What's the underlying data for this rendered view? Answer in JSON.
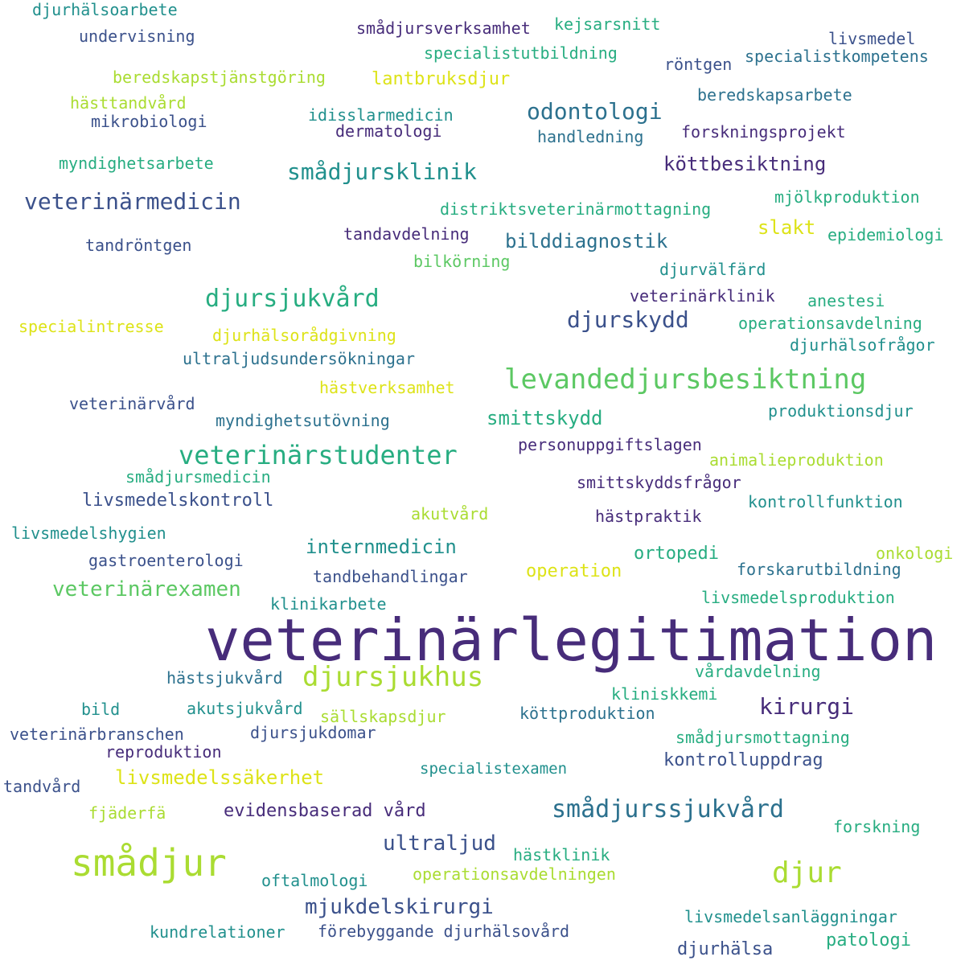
{
  "palette": {
    "v1": "#472c7a",
    "v2": "#3b518b",
    "v3": "#2c718e",
    "v4": "#21908d",
    "v5": "#27ad81",
    "v6": "#5cc863",
    "v7": "#aadc32",
    "v8": "#dde318"
  },
  "words": [
    {
      "text": "veterinärlegitimation",
      "weight": 72,
      "color": "v1"
    },
    {
      "text": "levandedjursbesiktning",
      "weight": 34,
      "color": "v6"
    },
    {
      "text": "smådjur",
      "weight": 46,
      "color": "v7"
    },
    {
      "text": "djursjukhus",
      "weight": 34,
      "color": "v7"
    },
    {
      "text": "veterinärstudenter",
      "weight": 32,
      "color": "v5"
    },
    {
      "text": "djur",
      "weight": 36,
      "color": "v7"
    },
    {
      "text": "djursjukvård",
      "weight": 30,
      "color": "v5"
    },
    {
      "text": "smådjurssjukvård",
      "weight": 30,
      "color": "v3"
    },
    {
      "text": "veterinärmedicin",
      "weight": 28,
      "color": "v2"
    },
    {
      "text": "smådjursklinik",
      "weight": 28,
      "color": "v4"
    },
    {
      "text": "odontologi",
      "weight": 28,
      "color": "v3"
    },
    {
      "text": "djurskydd",
      "weight": 28,
      "color": "v2"
    },
    {
      "text": "veterinärexamen",
      "weight": 26,
      "color": "v6"
    },
    {
      "text": "kirurgi",
      "weight": 28,
      "color": "v1"
    },
    {
      "text": "ultraljud",
      "weight": 26,
      "color": "v2"
    },
    {
      "text": "mjukdelskirurgi",
      "weight": 26,
      "color": "v2"
    },
    {
      "text": "livsmedelssäkerhet",
      "weight": 24,
      "color": "v8"
    },
    {
      "text": "smittskydd",
      "weight": 24,
      "color": "v5"
    },
    {
      "text": "bilddiagnostik",
      "weight": 24,
      "color": "v3"
    },
    {
      "text": "köttbesiktning",
      "weight": 24,
      "color": "v1"
    },
    {
      "text": "internmedicin",
      "weight": 24,
      "color": "v4"
    },
    {
      "text": "livsmedelskontroll",
      "weight": 22,
      "color": "v2"
    },
    {
      "text": "slakt",
      "weight": 24,
      "color": "v8"
    },
    {
      "text": "kontrolluppdrag",
      "weight": 22,
      "color": "v2"
    },
    {
      "text": "evidensbaserad vård",
      "weight": 22,
      "color": "v1"
    },
    {
      "text": "djurhälsa",
      "weight": 22,
      "color": "v2"
    },
    {
      "text": "patologi",
      "weight": 22,
      "color": "v5"
    },
    {
      "text": "operation",
      "weight": 22,
      "color": "v8"
    },
    {
      "text": "ortopedi",
      "weight": 22,
      "color": "v5"
    },
    {
      "text": "lantbruksdjur",
      "weight": 22,
      "color": "v8"
    },
    {
      "text": "djurhälsoarbete",
      "weight": 20,
      "color": "v4"
    },
    {
      "text": "förebyggande djurhälsovård",
      "weight": 20,
      "color": "v2"
    },
    {
      "text": "forskning",
      "weight": 20,
      "color": "v5"
    },
    {
      "text": "tandvård",
      "weight": 20,
      "color": "v2"
    },
    {
      "text": "specialistexamen",
      "weight": 19,
      "color": "v4"
    },
    {
      "text": "undervisning",
      "weight": 20,
      "color": "v2"
    },
    {
      "text": "smådjursverksamhet",
      "weight": 20,
      "color": "v1"
    },
    {
      "text": "kejsarsnitt",
      "weight": 20,
      "color": "v5"
    },
    {
      "text": "livsmedel",
      "weight": 20,
      "color": "v2"
    },
    {
      "text": "specialistutbildning",
      "weight": 20,
      "color": "v5"
    },
    {
      "text": "röntgen",
      "weight": 20,
      "color": "v2"
    },
    {
      "text": "specialistkompetens",
      "weight": 20,
      "color": "v3"
    },
    {
      "text": "beredskapstjänstgöring",
      "weight": 20,
      "color": "v7"
    },
    {
      "text": "beredskapsarbete",
      "weight": 20,
      "color": "v3"
    },
    {
      "text": "hästtandvård",
      "weight": 20,
      "color": "v7"
    },
    {
      "text": "idisslarmedicin",
      "weight": 20,
      "color": "v4"
    },
    {
      "text": "mikrobiologi",
      "weight": 20,
      "color": "v2"
    },
    {
      "text": "dermatologi",
      "weight": 20,
      "color": "v1"
    },
    {
      "text": "handledning",
      "weight": 20,
      "color": "v3"
    },
    {
      "text": "forskningsprojekt",
      "weight": 20,
      "color": "v1"
    },
    {
      "text": "myndighetsarbete",
      "weight": 20,
      "color": "v5"
    },
    {
      "text": "mjölkproduktion",
      "weight": 20,
      "color": "v5"
    },
    {
      "text": "distriktsveterinärmottagning",
      "weight": 20,
      "color": "v5"
    },
    {
      "text": "tandröntgen",
      "weight": 20,
      "color": "v2"
    },
    {
      "text": "tandavdelning",
      "weight": 20,
      "color": "v1"
    },
    {
      "text": "epidemiologi",
      "weight": 20,
      "color": "v5"
    },
    {
      "text": "bilkörning",
      "weight": 20,
      "color": "v6"
    },
    {
      "text": "djurvälfärd",
      "weight": 20,
      "color": "v4"
    },
    {
      "text": "veterinärklinik",
      "weight": 20,
      "color": "v1"
    },
    {
      "text": "anestesi",
      "weight": 20,
      "color": "v5"
    },
    {
      "text": "specialintresse",
      "weight": 20,
      "color": "v8"
    },
    {
      "text": "djurhälsorådgivning",
      "weight": 20,
      "color": "v8"
    },
    {
      "text": "operationsavdelning",
      "weight": 20,
      "color": "v5"
    },
    {
      "text": "ultraljudsundersökningar",
      "weight": 20,
      "color": "v3"
    },
    {
      "text": "djurhälsofrågor",
      "weight": 20,
      "color": "v4"
    },
    {
      "text": "hästverksamhet",
      "weight": 20,
      "color": "v8"
    },
    {
      "text": "veterinärvård",
      "weight": 20,
      "color": "v2"
    },
    {
      "text": "myndighetsutövning",
      "weight": 20,
      "color": "v3"
    },
    {
      "text": "produktionsdjur",
      "weight": 20,
      "color": "v4"
    },
    {
      "text": "personuppgiftslagen",
      "weight": 20,
      "color": "v1"
    },
    {
      "text": "animalieproduktion",
      "weight": 20,
      "color": "v7"
    },
    {
      "text": "smådjursmedicin",
      "weight": 20,
      "color": "v5"
    },
    {
      "text": "smittskyddsfrågor",
      "weight": 20,
      "color": "v1"
    },
    {
      "text": "akutvård",
      "weight": 20,
      "color": "v7"
    },
    {
      "text": "hästpraktik",
      "weight": 20,
      "color": "v1"
    },
    {
      "text": "kontrollfunktion",
      "weight": 20,
      "color": "v4"
    },
    {
      "text": "livsmedelshygien",
      "weight": 20,
      "color": "v4"
    },
    {
      "text": "gastroenterologi",
      "weight": 20,
      "color": "v2"
    },
    {
      "text": "onkologi",
      "weight": 20,
      "color": "v7"
    },
    {
      "text": "tandbehandlingar",
      "weight": 20,
      "color": "v2"
    },
    {
      "text": "forskarutbildning",
      "weight": 20,
      "color": "v3"
    },
    {
      "text": "klinikarbete",
      "weight": 20,
      "color": "v4"
    },
    {
      "text": "livsmedelsproduktion",
      "weight": 20,
      "color": "v5"
    },
    {
      "text": "vårdavdelning",
      "weight": 20,
      "color": "v5"
    },
    {
      "text": "hästsjukvård",
      "weight": 20,
      "color": "v3"
    },
    {
      "text": "kliniskkemi",
      "weight": 20,
      "color": "v5"
    },
    {
      "text": "bild",
      "weight": 20,
      "color": "v4"
    },
    {
      "text": "akutsjukvård",
      "weight": 20,
      "color": "v4"
    },
    {
      "text": "sällskapsdjur",
      "weight": 20,
      "color": "v7"
    },
    {
      "text": "köttproduktion",
      "weight": 20,
      "color": "v3"
    },
    {
      "text": "veterinärbranschen",
      "weight": 20,
      "color": "v2"
    },
    {
      "text": "djursjukdomar",
      "weight": 20,
      "color": "v2"
    },
    {
      "text": "smådjursmottagning",
      "weight": 20,
      "color": "v5"
    },
    {
      "text": "reproduktion",
      "weight": 20,
      "color": "v1"
    },
    {
      "text": "fjäderfä",
      "weight": 20,
      "color": "v7"
    },
    {
      "text": "hästklinik",
      "weight": 20,
      "color": "v5"
    },
    {
      "text": "oftalmologi",
      "weight": 20,
      "color": "v4"
    },
    {
      "text": "operationsavdelningen",
      "weight": 20,
      "color": "v7"
    },
    {
      "text": "livsmedelsanläggningar",
      "weight": 20,
      "color": "v4"
    },
    {
      "text": "kundrelationer",
      "weight": 20,
      "color": "v4"
    }
  ]
}
